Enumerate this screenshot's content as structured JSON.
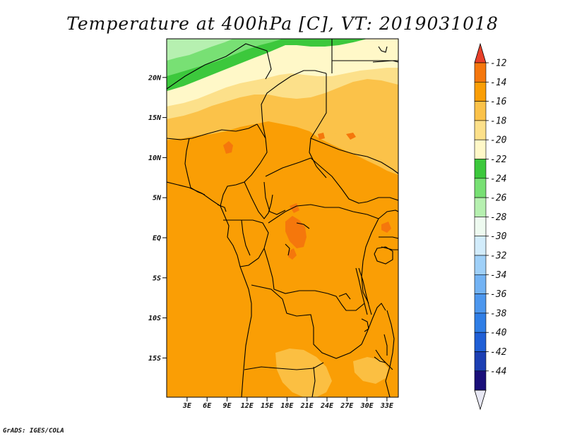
{
  "title": "Temperature at 400hPa [C], VT: 2019031018",
  "credit": "GrADS: IGES/COLA",
  "lat_ticks": [
    {
      "label": "20N",
      "lat": 20
    },
    {
      "label": "15N",
      "lat": 15
    },
    {
      "label": "10N",
      "lat": 10
    },
    {
      "label": "5N",
      "lat": 5
    },
    {
      "label": "EQ",
      "lat": 0
    },
    {
      "label": "5S",
      "lat": -5
    },
    {
      "label": "10S",
      "lat": -10
    },
    {
      "label": "15S",
      "lat": -15
    }
  ],
  "lon_ticks": [
    {
      "label": "3E",
      "lon": 3
    },
    {
      "label": "6E",
      "lon": 6
    },
    {
      "label": "9E",
      "lon": 9
    },
    {
      "label": "12E",
      "lon": 12
    },
    {
      "label": "15E",
      "lon": 15
    },
    {
      "label": "18E",
      "lon": 18
    },
    {
      "label": "21E",
      "lon": 21
    },
    {
      "label": "24E",
      "lon": 24
    },
    {
      "label": "27E",
      "lon": 27
    },
    {
      "label": "30E",
      "lon": 30
    },
    {
      "label": "33E",
      "lon": 33
    }
  ],
  "colorbar": {
    "labels": [
      "-12",
      "-14",
      "-16",
      "-18",
      "-20",
      "-22",
      "-24",
      "-26",
      "-28",
      "-30",
      "-32",
      "-34",
      "-36",
      "-38",
      "-40",
      "-42",
      "-44"
    ],
    "colors": [
      "#e8e8f4",
      "#1a0f7a",
      "#1c3fb3",
      "#1f5fd6",
      "#2f7ee6",
      "#4d97ee",
      "#73b3f4",
      "#9fd0f8",
      "#d2ecfb",
      "#eefaf0",
      "#b6f0b0",
      "#78e074",
      "#3cc83c",
      "#fff8c8",
      "#fce08a",
      "#fbc249",
      "#fa9e05",
      "#f5770c",
      "#e8402a"
    ]
  },
  "field_colors": {
    "above_minus_14": "#f5770c",
    "minus_16_to_minus_14": "#fa9e05",
    "minus_18_to_minus_16": "#fbc249",
    "minus_20_to_minus_18": "#fce08a",
    "minus_22_to_minus_20": "#fff8c8",
    "minus_24_to_minus_22": "#3cc83c",
    "minus_26_to_minus_24": "#78e074",
    "minus_28_to_minus_26": "#b6f0b0"
  }
}
